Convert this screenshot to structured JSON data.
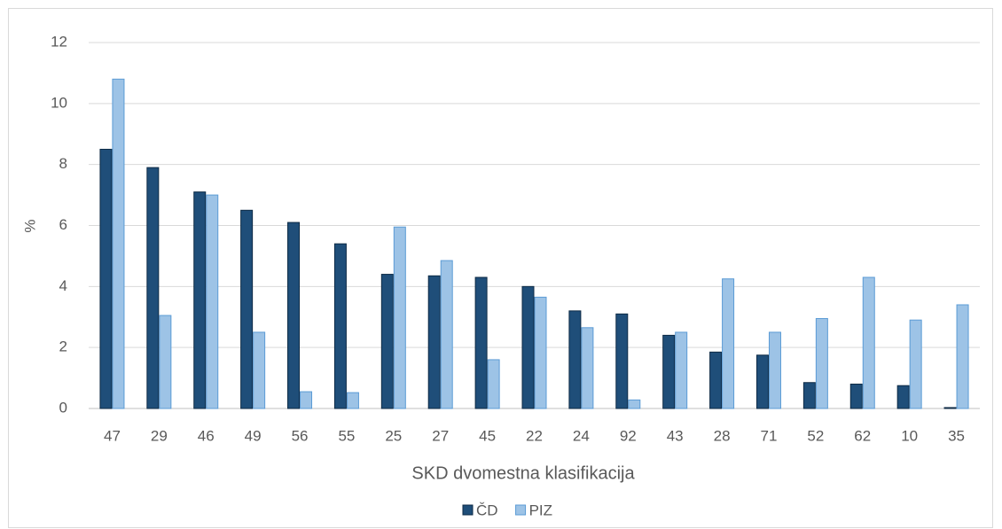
{
  "chart_data": {
    "type": "bar",
    "x_label": "SKD dvomestna klasifikacija",
    "y_label": "%",
    "categories": [
      "47",
      "29",
      "46",
      "49",
      "56",
      "55",
      "25",
      "27",
      "45",
      "22",
      "24",
      "92",
      "43",
      "28",
      "71",
      "52",
      "62",
      "10",
      "35"
    ],
    "series": [
      {
        "name": "ČD",
        "color": "#1f4e79",
        "values": [
          8.5,
          7.9,
          7.1,
          6.5,
          6.1,
          5.4,
          4.4,
          4.35,
          4.3,
          4.0,
          3.2,
          3.1,
          2.4,
          1.85,
          1.75,
          0.85,
          0.8,
          0.75,
          0.03
        ]
      },
      {
        "name": "PIZ",
        "color": "#9dc3e6",
        "values": [
          10.8,
          3.05,
          7.0,
          2.5,
          0.55,
          0.52,
          5.95,
          4.85,
          1.6,
          3.65,
          2.65,
          0.28,
          2.5,
          4.25,
          2.5,
          2.95,
          4.3,
          2.9,
          3.4
        ]
      }
    ],
    "ylim": [
      0,
      12
    ],
    "yticks": [
      0,
      2,
      4,
      6,
      8,
      10,
      12
    ],
    "grid": true,
    "legend": "bottom"
  }
}
